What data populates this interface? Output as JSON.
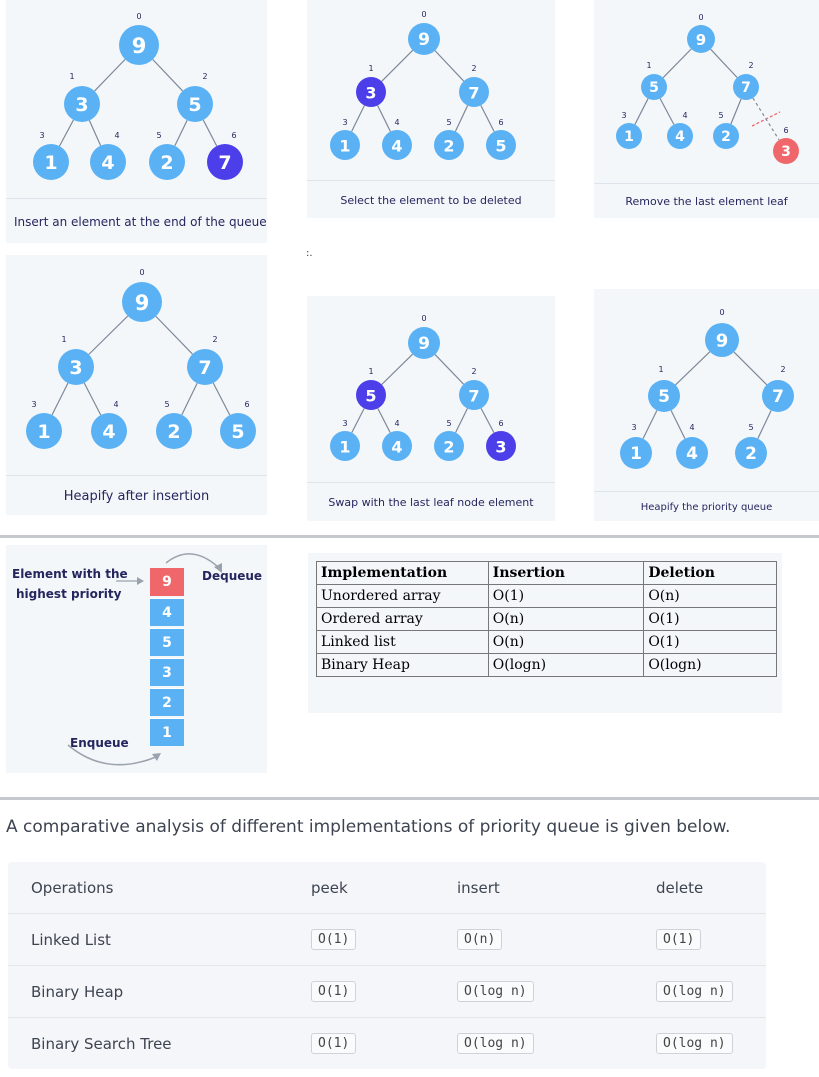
{
  "trees": [
    {
      "caption": "Insert an element at the end of the queue",
      "nodes": [
        {
          "value": "9",
          "index": "0",
          "style": "blue"
        },
        {
          "value": "3",
          "index": "1",
          "style": "blue"
        },
        {
          "value": "5",
          "index": "2",
          "style": "blue"
        },
        {
          "value": "1",
          "index": "3",
          "style": "blue"
        },
        {
          "value": "4",
          "index": "4",
          "style": "blue"
        },
        {
          "value": "2",
          "index": "5",
          "style": "blue"
        },
        {
          "value": "7",
          "index": "6",
          "style": "dark"
        }
      ]
    },
    {
      "caption": "Select the element to be deleted",
      "nodes": [
        {
          "value": "9",
          "index": "0",
          "style": "blue"
        },
        {
          "value": "3",
          "index": "1",
          "style": "dark"
        },
        {
          "value": "7",
          "index": "2",
          "style": "blue"
        },
        {
          "value": "1",
          "index": "3",
          "style": "blue"
        },
        {
          "value": "4",
          "index": "4",
          "style": "blue"
        },
        {
          "value": "2",
          "index": "5",
          "style": "blue"
        },
        {
          "value": "5",
          "index": "6",
          "style": "blue"
        }
      ]
    },
    {
      "caption": "Remove the last element leaf",
      "nodes": [
        {
          "value": "9",
          "index": "0",
          "style": "blue"
        },
        {
          "value": "5",
          "index": "1",
          "style": "blue"
        },
        {
          "value": "7",
          "index": "2",
          "style": "blue"
        },
        {
          "value": "1",
          "index": "3",
          "style": "blue"
        },
        {
          "value": "4",
          "index": "4",
          "style": "blue"
        },
        {
          "value": "2",
          "index": "5",
          "style": "blue"
        },
        {
          "value": "3",
          "index": "6",
          "style": "red"
        }
      ]
    },
    {
      "caption": "Heapify after insertion",
      "nodes": [
        {
          "value": "9",
          "index": "0",
          "style": "blue"
        },
        {
          "value": "3",
          "index": "1",
          "style": "blue"
        },
        {
          "value": "7",
          "index": "2",
          "style": "blue"
        },
        {
          "value": "1",
          "index": "3",
          "style": "blue"
        },
        {
          "value": "4",
          "index": "4",
          "style": "blue"
        },
        {
          "value": "2",
          "index": "5",
          "style": "blue"
        },
        {
          "value": "5",
          "index": "6",
          "style": "blue"
        }
      ]
    },
    {
      "caption": "Swap with the last leaf node element",
      "nodes": [
        {
          "value": "9",
          "index": "0",
          "style": "blue"
        },
        {
          "value": "5",
          "index": "1",
          "style": "dark"
        },
        {
          "value": "7",
          "index": "2",
          "style": "blue"
        },
        {
          "value": "1",
          "index": "3",
          "style": "blue"
        },
        {
          "value": "4",
          "index": "4",
          "style": "blue"
        },
        {
          "value": "2",
          "index": "5",
          "style": "blue"
        },
        {
          "value": "3",
          "index": "6",
          "style": "dark"
        }
      ]
    },
    {
      "caption": "Heapify the priority queue",
      "nodes": [
        {
          "value": "9",
          "index": "0",
          "style": "blue"
        },
        {
          "value": "5",
          "index": "1",
          "style": "blue"
        },
        {
          "value": "7",
          "index": "2",
          "style": "blue"
        },
        {
          "value": "1",
          "index": "3",
          "style": "blue"
        },
        {
          "value": "4",
          "index": "4",
          "style": "blue"
        },
        {
          "value": "2",
          "index": "5",
          "style": "blue"
        }
      ]
    }
  ],
  "stray_mark": ":.",
  "queue": {
    "highest_label_line1": "Element with the",
    "highest_label_line2": "highest priority",
    "dequeue_label": "Dequeue",
    "enqueue_label": "Enqueue",
    "items": [
      "9",
      "4",
      "5",
      "3",
      "2",
      "1"
    ]
  },
  "complexity_table": {
    "headers": [
      "Implementation",
      "Insertion",
      "Deletion"
    ],
    "rows": [
      [
        "Unordered array",
        "O(1)",
        "O(n)"
      ],
      [
        "Ordered array",
        "O(n)",
        "O(1)"
      ],
      [
        "Linked list",
        "O(n)",
        "O(1)"
      ],
      [
        "Binary Heap",
        "O(logn)",
        "O(logn)"
      ]
    ]
  },
  "intro_text": "A comparative analysis of different implementations of priority queue is given below.",
  "comparison_table": {
    "headers": [
      "Operations",
      "peek",
      "insert",
      "delete"
    ],
    "rows": [
      [
        "Linked List",
        "O(1)",
        "O(n)",
        "O(1)"
      ],
      [
        "Binary Heap",
        "O(1)",
        "O(log n)",
        "O(log n)"
      ],
      [
        "Binary Search Tree",
        "O(1)",
        "O(log n)",
        "O(log n)"
      ]
    ]
  },
  "colors": {
    "node": "#5ab2f5",
    "highlight": "#4c3fe9",
    "removed": "#f0676b"
  }
}
